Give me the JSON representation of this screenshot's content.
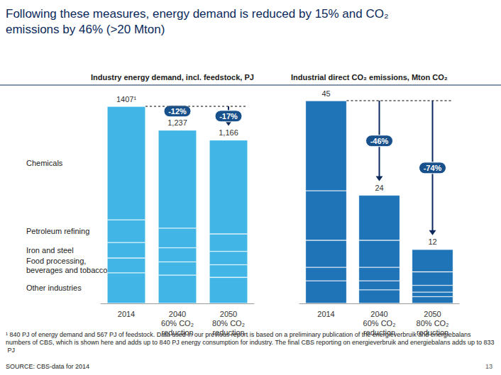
{
  "title": "Following these measures, energy demand is reduced by 15% and CO₂ emissions by 46% (>20 Mton)",
  "footnote": "¹ 840 PJ of energy demand and 567 PJ of feedstock. Data used in our previous report is based on a preliminary publication of the energieverbruik and energiebalans numbers of CBS, which is shown here and adds up to 840 PJ energy consumption for industry. The final CBS reporting on energieverbruik and energiebalans adds up to 833 PJ",
  "source": "SOURCE: CBS-data for 2014",
  "page_number": 13,
  "chart_data": [
    {
      "type": "bar",
      "stacked": true,
      "subtitle": "Industry energy demand, incl. feedstock, PJ",
      "categories": [
        "2014",
        "2040\n60% CO₂\nreduction",
        "2050\n80% CO₂\nreduction"
      ],
      "color": "#41b6e6",
      "series": [
        {
          "name": "Chemicals",
          "values": [
            810,
            700,
            670
          ]
        },
        {
          "name": "Petroleum refining",
          "values": [
            162,
            140,
            125
          ]
        },
        {
          "name": "Iron and steel",
          "values": [
            111,
            100,
            95
          ]
        },
        {
          "name": "Food processing,\nbeverages and tobacco",
          "values": [
            106,
            95,
            90
          ]
        },
        {
          "name": "Other industries",
          "values": [
            218,
            202,
            186
          ]
        }
      ],
      "totals": {
        "values": [
          1407,
          1237,
          1166
        ],
        "value_labels": [
          "1407¹",
          "1,237",
          "1,166"
        ]
      },
      "annotations": [
        {
          "text": "-12%",
          "from": 0,
          "to": 1
        },
        {
          "text": "-17%",
          "from": 0,
          "to": 2
        }
      ],
      "ylim": [
        0,
        1407
      ],
      "yticks": [],
      "grid": false,
      "tick_labels": "x"
    },
    {
      "type": "bar",
      "stacked": true,
      "subtitle": "Industrial direct CO₂ emissions, Mton CO₂",
      "categories": [
        "2014",
        "2040\n60% CO₂\nreduction",
        "2050\n80% CO₂\nreduction"
      ],
      "color": "#1f73b7",
      "series": [
        {
          "values": [
            20,
            10,
            5
          ]
        },
        {
          "values": [
            11,
            6,
            3
          ]
        },
        {
          "values": [
            6,
            3,
            1.5
          ]
        },
        {
          "values": [
            3,
            2,
            1
          ]
        },
        {
          "values": [
            5,
            3,
            1.5
          ]
        }
      ],
      "totals": {
        "values": [
          45,
          24,
          12
        ],
        "value_labels": [
          "45",
          "24",
          "12"
        ]
      },
      "annotations": [
        {
          "text": "-46%",
          "from": 0,
          "to": 1
        },
        {
          "text": "-74%",
          "from": 0,
          "to": 2
        }
      ],
      "ylim": [
        0,
        45
      ],
      "yticks": [],
      "grid": false,
      "tick_labels": "x"
    }
  ]
}
